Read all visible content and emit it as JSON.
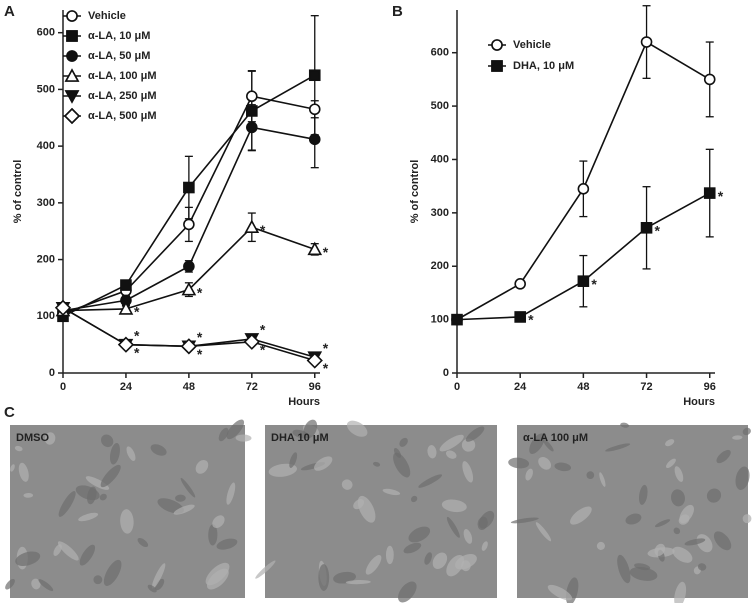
{
  "chart_data": [
    {
      "panel": "A",
      "type": "line",
      "x_label": "Hours",
      "y_label": "% of control",
      "x": [
        0,
        24,
        48,
        72,
        96
      ],
      "xlim": [
        0,
        98
      ],
      "xticks": [
        0,
        24,
        48,
        72,
        96
      ],
      "ylim": [
        0,
        640
      ],
      "yticks": [
        0,
        100,
        200,
        300,
        400,
        500,
        600
      ],
      "color": "#111",
      "series": [
        {
          "name": "Vehicle",
          "marker": "circle-open",
          "values": [
            105,
            145,
            262,
            488,
            465
          ],
          "errors": [
            5,
            10,
            30,
            45,
            15
          ],
          "annotations": [
            null,
            null,
            null,
            null,
            null
          ]
        },
        {
          "name": "α-LA, 10 μM",
          "marker": "square",
          "values": [
            100,
            155,
            327,
            462,
            525
          ],
          "errors": [
            5,
            8,
            55,
            70,
            105
          ],
          "annotations": [
            null,
            null,
            null,
            null,
            null
          ]
        },
        {
          "name": "α-LA, 50 μM",
          "marker": "circle",
          "values": [
            110,
            128,
            188,
            433,
            412
          ],
          "errors": [
            5,
            8,
            10,
            40,
            50
          ],
          "annotations": [
            null,
            null,
            null,
            null,
            null
          ]
        },
        {
          "name": "α-LA, 100 μM",
          "marker": "triangle-open",
          "values": [
            110,
            113,
            147,
            257,
            218
          ],
          "errors": [
            5,
            5,
            12,
            25,
            10
          ],
          "annotations": [
            null,
            "*",
            "*",
            "*",
            "*"
          ]
        },
        {
          "name": "α-LA, 250 μM",
          "marker": "triangle-down",
          "values": [
            115,
            50,
            47,
            60,
            28
          ],
          "errors": [
            5,
            4,
            4,
            5,
            4
          ],
          "annotations": [
            null,
            "*",
            "*",
            "*",
            "*"
          ]
        },
        {
          "name": "α-LA, 500 μM",
          "marker": "diamond-open",
          "values": [
            115,
            50,
            47,
            55,
            22
          ],
          "errors": [
            5,
            4,
            4,
            5,
            4
          ],
          "annotations": [
            null,
            "*",
            "*",
            "*",
            "*"
          ]
        }
      ]
    },
    {
      "panel": "B",
      "type": "line",
      "x_label": "Hours",
      "y_label": "% of control",
      "x": [
        0,
        24,
        48,
        72,
        96
      ],
      "xlim": [
        0,
        98
      ],
      "xticks": [
        0,
        24,
        48,
        72,
        96
      ],
      "ylim": [
        0,
        680
      ],
      "yticks": [
        0,
        100,
        200,
        300,
        400,
        500,
        600
      ],
      "color": "#111",
      "series": [
        {
          "name": "Vehicle",
          "marker": "circle-open",
          "values": [
            100,
            167,
            345,
            620,
            550
          ],
          "errors": [
            5,
            5,
            52,
            68,
            70
          ],
          "annotations": [
            null,
            null,
            null,
            null,
            null
          ]
        },
        {
          "name": "DHA, 10 μM",
          "marker": "square",
          "values": [
            100,
            105,
            172,
            272,
            337
          ],
          "errors": [
            5,
            5,
            48,
            77,
            82
          ],
          "annotations": [
            null,
            "*",
            "*",
            "*",
            "*"
          ]
        }
      ]
    }
  ],
  "panel_c": {
    "label": "C",
    "images": [
      {
        "label": "DMSO"
      },
      {
        "label": "DHA 10 μM"
      },
      {
        "label": "α-LA 100 μM"
      }
    ]
  }
}
